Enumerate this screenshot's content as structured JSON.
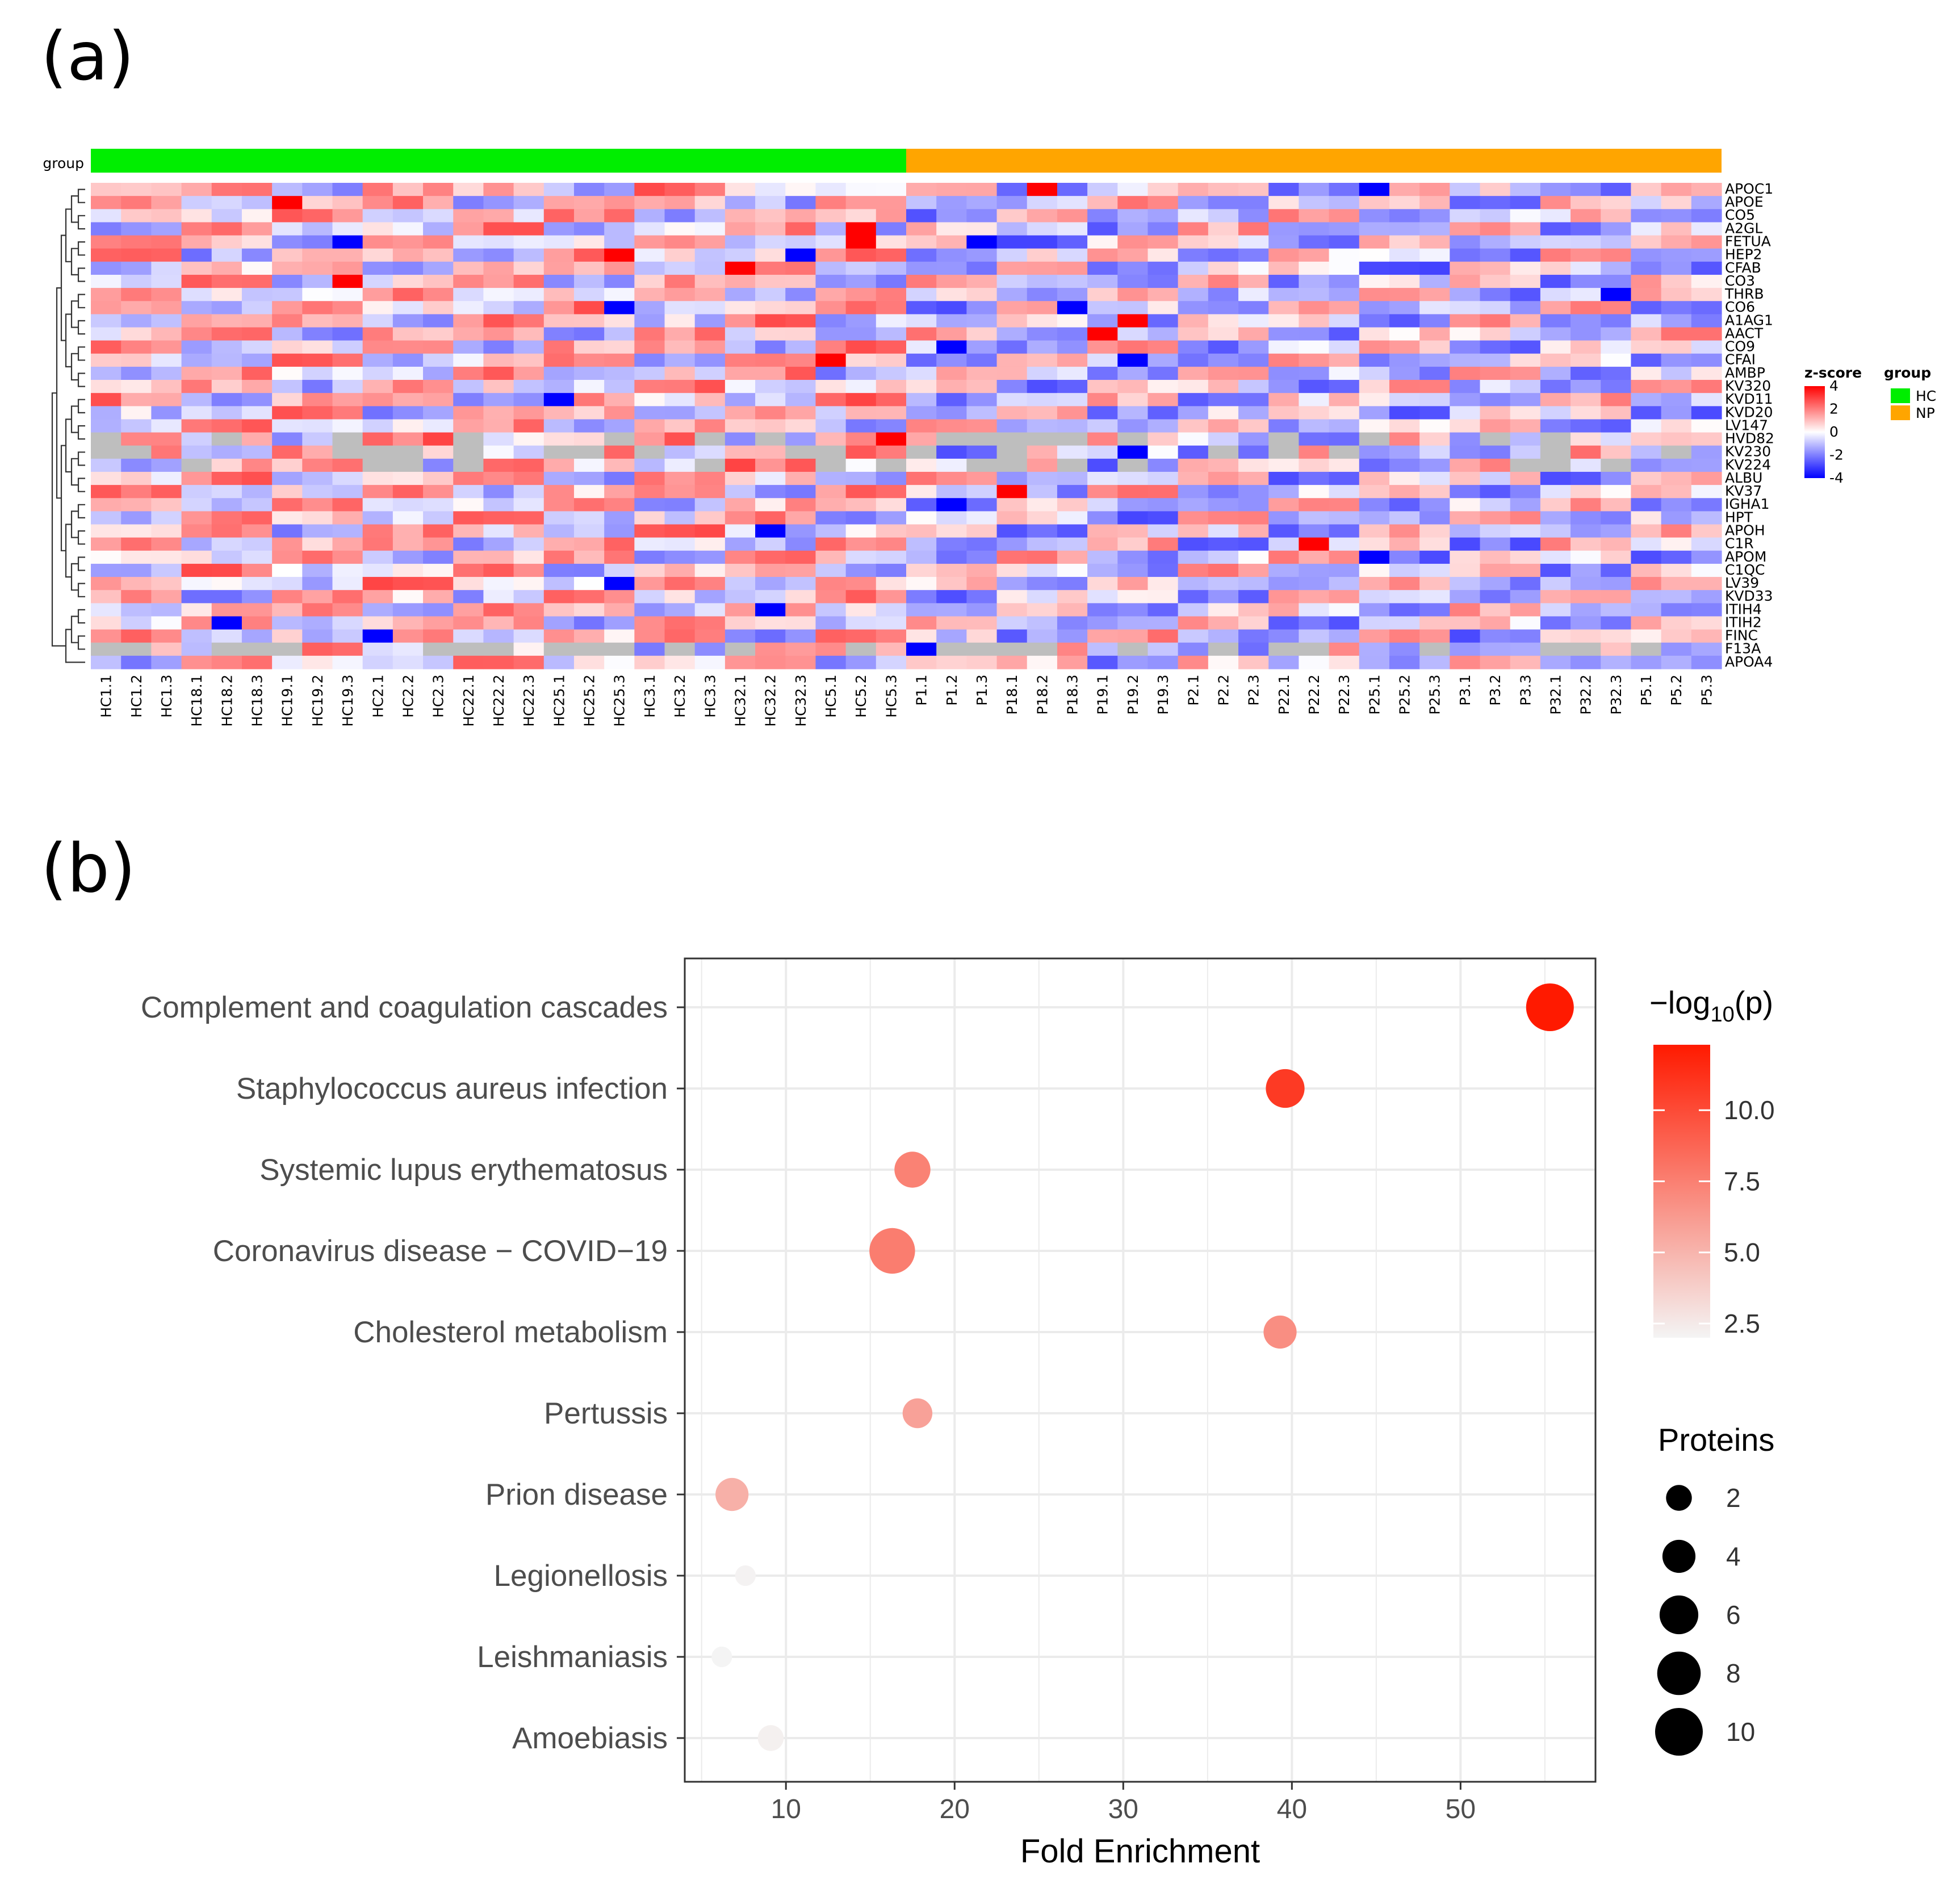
{
  "panel_a_label": "(a)",
  "panel_b_label": "(b)",
  "chart_data": [
    {
      "type": "heatmap",
      "group_track_label": "group",
      "groups": [
        {
          "name": "HC",
          "color": "#00ee00",
          "count": 27
        },
        {
          "name": "NP",
          "color": "#ffa500",
          "count": 27
        }
      ],
      "columns": [
        "HC1.1",
        "HC1.2",
        "HC1.3",
        "HC18.1",
        "HC18.2",
        "HC18.3",
        "HC19.1",
        "HC19.2",
        "HC19.3",
        "HC2.1",
        "HC2.2",
        "HC2.3",
        "HC22.1",
        "HC22.2",
        "HC22.3",
        "HC25.1",
        "HC25.2",
        "HC25.3",
        "HC3.1",
        "HC3.2",
        "HC3.3",
        "HC32.1",
        "HC32.2",
        "HC32.3",
        "HC5.1",
        "HC5.2",
        "HC5.3",
        "P1.1",
        "P1.2",
        "P1.3",
        "P18.1",
        "P18.2",
        "P18.3",
        "P19.1",
        "P19.2",
        "P19.3",
        "P2.1",
        "P2.2",
        "P2.3",
        "P22.1",
        "P22.2",
        "P22.3",
        "P25.1",
        "P25.2",
        "P25.3",
        "P3.1",
        "P3.2",
        "P3.3",
        "P32.1",
        "P32.2",
        "P32.3",
        "P5.1",
        "P5.2",
        "P5.3"
      ],
      "rows": [
        "APOC1",
        "APOE",
        "CO5",
        "A2GL",
        "FETUA",
        "HEP2",
        "CFAB",
        "CO3",
        "THRB",
        "CO6",
        "A1AG1",
        "AACT",
        "CO9",
        "CFAI",
        "AMBP",
        "KV320",
        "KVD11",
        "KVD20",
        "LV147",
        "HVD82",
        "KV230",
        "KV224",
        "ALBU",
        "KV37",
        "IGHA1",
        "HPT",
        "APOH",
        "C1R",
        "APOM",
        "C1QC",
        "LV39",
        "KVD33",
        "ITIH4",
        "ITIH2",
        "FINC",
        "F13A",
        "APOA4"
      ],
      "zscore_legend": {
        "title": "z-score",
        "ticks": [
          "4",
          "2",
          "0",
          "-2",
          "-4"
        ],
        "range": [
          -4,
          4
        ]
      },
      "group_legend": {
        "title": "group",
        "items": [
          "HC",
          "NP"
        ]
      },
      "colors": {
        "low": "#0000ff",
        "mid": "#ffffff",
        "high": "#ff0000",
        "missing": "#bebebe"
      }
    },
    {
      "type": "scatter",
      "xlabel": "Fold Enrichment",
      "ylabel": "",
      "xlim": [
        4,
        58
      ],
      "xticks": [
        10,
        20,
        30,
        40,
        50
      ],
      "categories": [
        "Complement and coagulation cascades",
        "Staphylococcus aureus infection",
        "Systemic lupus erythematosus",
        "Coronavirus disease − COVID−19",
        "Cholesterol metabolism",
        "Pertussis",
        "Prion disease",
        "Legionellosis",
        "Leishmaniasis",
        "Amoebiasis"
      ],
      "fold_enrichment": [
        55.3,
        39.6,
        17.5,
        16.3,
        39.3,
        17.8,
        6.8,
        7.6,
        6.2,
        9.1
      ],
      "neg_log10_p": [
        12.3,
        10.8,
        7.4,
        7.6,
        6.8,
        5.9,
        5.2,
        2.1,
        1.9,
        2.2
      ],
      "proteins": [
        10,
        6,
        5,
        9,
        4,
        3,
        4,
        1,
        1,
        2
      ],
      "color_legend": {
        "title": "−log₁₀(p)",
        "ticks": [
          "10.0",
          "7.5",
          "5.0",
          "2.5"
        ],
        "range": [
          2.0,
          12.3
        ],
        "low_color": "#f4f4f4",
        "high_color": "#ff1a00"
      },
      "size_legend": {
        "title": "Proteins",
        "values": [
          "2",
          "4",
          "6",
          "8",
          "10"
        ]
      }
    }
  ]
}
